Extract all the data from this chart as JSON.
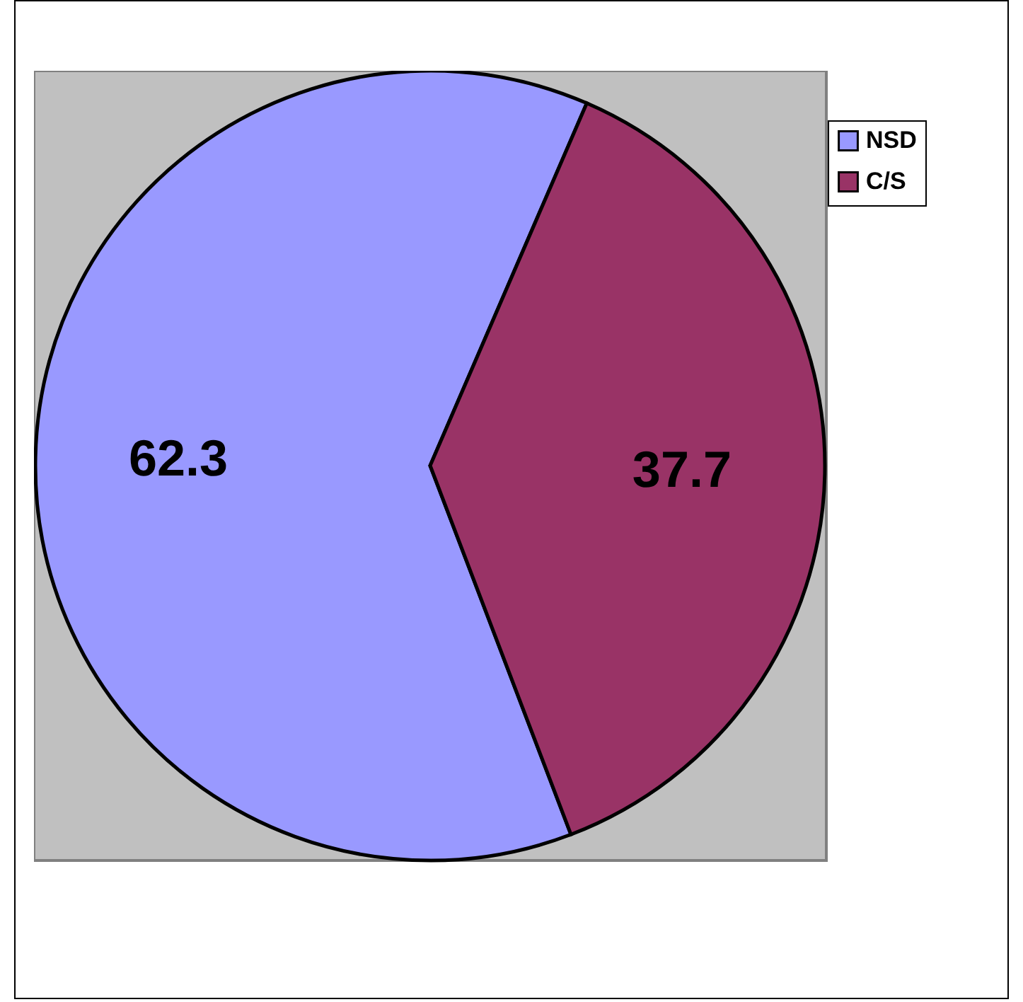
{
  "chart_data": {
    "type": "pie",
    "categories": [
      "NSD",
      "C/S"
    ],
    "values": [
      62.3,
      37.7
    ],
    "colors": [
      "#9999ff",
      "#993366"
    ],
    "data_labels": true,
    "legend": "top right"
  }
}
